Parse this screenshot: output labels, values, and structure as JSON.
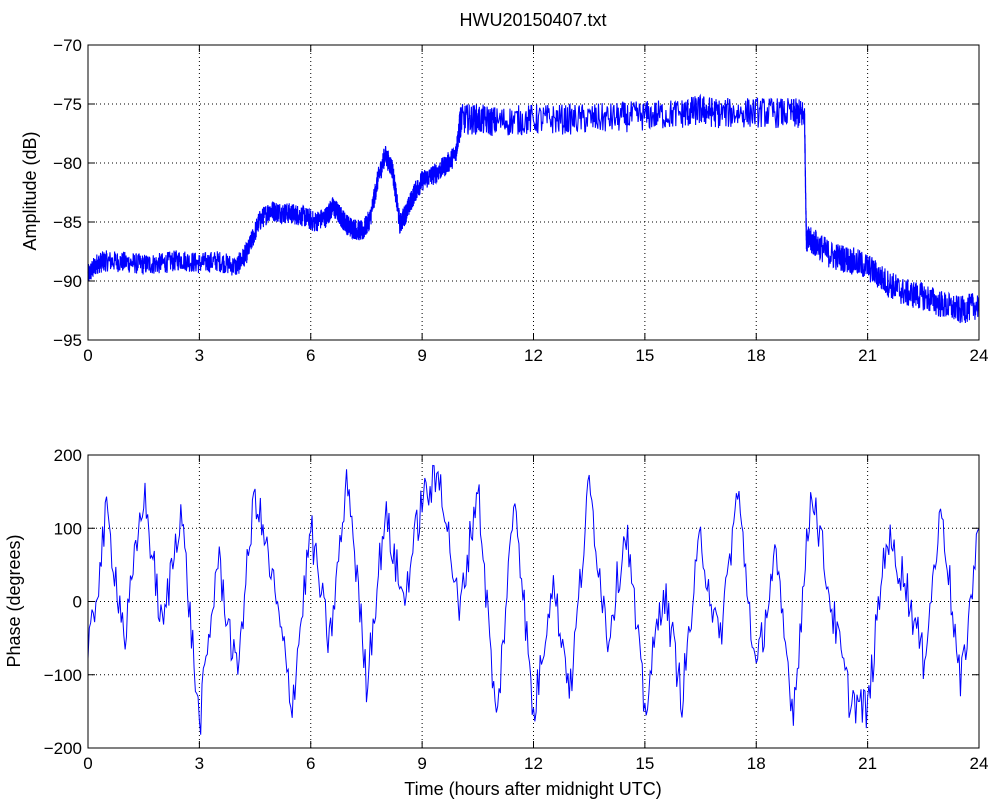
{
  "chart_data": [
    {
      "type": "line",
      "title": "HWU20150407.txt",
      "xlabel": "",
      "ylabel": "Amplitude (dB)",
      "xlim": [
        0,
        24
      ],
      "ylim": [
        -95,
        -70
      ],
      "xticks": [
        0,
        3,
        6,
        9,
        12,
        15,
        18,
        21,
        24
      ],
      "yticks": [
        -95,
        -90,
        -85,
        -80,
        -75,
        -70
      ],
      "grid": "dotted",
      "line_color": "#0000ff",
      "series": [
        {
          "x": [
            0,
            0.25,
            0.5,
            1,
            1.5,
            2,
            2.5,
            3,
            3.5,
            4,
            4.3,
            4.6,
            4.9,
            5.2,
            5.5,
            5.8,
            6.1,
            6.4,
            6.6,
            6.8,
            7.0,
            7.2,
            7.4,
            7.6,
            7.8,
            8.0,
            8.2,
            8.4,
            8.6,
            8.8,
            9.0,
            9.3,
            9.6,
            9.9,
            10.0,
            10.05,
            10.5,
            11,
            12,
            13,
            14,
            15,
            16,
            16.5,
            17,
            18,
            19,
            19.3,
            19.35,
            19.6,
            20,
            20.5,
            21,
            21.5,
            22,
            22.5,
            23,
            23.5,
            24
          ],
          "y": [
            -89.5,
            -88.5,
            -88.3,
            -88.4,
            -88.6,
            -88.5,
            -88.2,
            -88.5,
            -88.3,
            -88.8,
            -87.5,
            -85,
            -84,
            -84.2,
            -84.3,
            -84.5,
            -85,
            -84.6,
            -83.7,
            -84.5,
            -85.3,
            -85.6,
            -85.8,
            -84.7,
            -81.5,
            -79.3,
            -80.5,
            -85.2,
            -84.0,
            -82.5,
            -81.5,
            -81.0,
            -80.3,
            -79.3,
            -77.2,
            -76.3,
            -76.3,
            -76.5,
            -76.3,
            -76.3,
            -76.2,
            -76.0,
            -75.8,
            -75.5,
            -75.8,
            -75.7,
            -75.8,
            -75.9,
            -86.5,
            -86.8,
            -87.8,
            -88.2,
            -88.8,
            -90.1,
            -91.0,
            -91.3,
            -92.0,
            -92.5,
            -92.0
          ]
        }
      ]
    },
    {
      "type": "line",
      "title": "",
      "xlabel": "Time (hours after midnight UTC)",
      "ylabel": "Phase (degrees)",
      "xlim": [
        0,
        24
      ],
      "ylim": [
        -200,
        200
      ],
      "xticks": [
        0,
        3,
        6,
        9,
        12,
        15,
        18,
        21,
        24
      ],
      "yticks": [
        -200,
        -100,
        0,
        100,
        200
      ],
      "grid": "dotted",
      "line_color": "#0000ff",
      "series": [
        {
          "x": [
            0,
            0.5,
            1,
            1.5,
            2,
            2.5,
            3,
            3.5,
            4,
            4.5,
            5,
            5.5,
            6,
            6.5,
            7,
            7.5,
            8,
            8.5,
            9,
            9.5,
            10,
            10.5,
            11,
            11.5,
            12,
            12.5,
            13,
            13.5,
            14,
            14.5,
            15,
            15.5,
            16,
            16.5,
            17,
            17.5,
            18,
            18.5,
            19,
            19.5,
            20,
            20.5,
            21,
            21.5,
            22,
            22.5,
            23,
            23.5,
            24
          ],
          "y": [
            -80,
            120,
            -50,
            150,
            -40,
            130,
            -170,
            60,
            -100,
            150,
            20,
            -140,
            100,
            -60,
            170,
            -110,
            120,
            0,
            140,
            170,
            -20,
            160,
            -170,
            150,
            -160,
            30,
            -120,
            160,
            -50,
            100,
            -150,
            20,
            -130,
            90,
            -60,
            150,
            -100,
            60,
            -150,
            160,
            0,
            -130,
            -150,
            90,
            30,
            -80,
            130,
            -120,
            100
          ]
        }
      ]
    }
  ]
}
